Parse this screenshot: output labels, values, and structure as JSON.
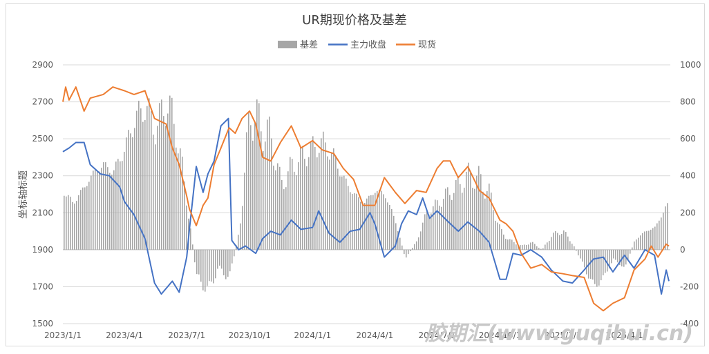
{
  "chart_data": {
    "type": "bar+line",
    "title": "UR期现价格及基差",
    "ylabel": "坐标轴标题",
    "legend_position": "top",
    "grid": true,
    "ylim_left": [
      1500,
      2900
    ],
    "ylim_right": [
      -400,
      1000
    ],
    "y_ticks_left": [
      "2900",
      "2700",
      "2500",
      "2300",
      "2100",
      "1900",
      "1700",
      "1500"
    ],
    "y_ticks_right": [
      "1000",
      "800",
      "600",
      "400",
      "200",
      "0",
      "-200",
      "-400"
    ],
    "x_ticks": [
      "2023/1/1",
      "2023/4/1",
      "2023/7/1",
      "2023/10/1",
      "2024/1/1",
      "2024/4/1",
      "2024/7/1",
      "2024/10/1",
      "2025/1/1",
      "2025/4/1"
    ],
    "series": [
      {
        "name": "基差",
        "axis": "right",
        "type": "bar",
        "color": "#a6a6a6",
        "points": [
          [
            "2023/1/1",
            320
          ],
          [
            "2023/1/15",
            250
          ],
          [
            "2023/2/1",
            340
          ],
          [
            "2023/2/15",
            420
          ],
          [
            "2023/3/1",
            460
          ],
          [
            "2023/3/15",
            420
          ],
          [
            "2023/4/1",
            550
          ],
          [
            "2023/4/15",
            700
          ],
          [
            "2023/5/1",
            780
          ],
          [
            "2023/5/15",
            650
          ],
          [
            "2023/6/1",
            800
          ],
          [
            "2023/6/15",
            650
          ],
          [
            "2023/7/1",
            250
          ],
          [
            "2023/7/15",
            -150
          ],
          [
            "2023/8/1",
            -220
          ],
          [
            "2023/8/15",
            -100
          ],
          [
            "2023/9/1",
            -150
          ],
          [
            "2023/9/15",
            100
          ],
          [
            "2023/10/1",
            750
          ],
          [
            "2023/10/15",
            680
          ],
          [
            "2023/11/1",
            600
          ],
          [
            "2023/11/15",
            350
          ],
          [
            "2023/12/1",
            450
          ],
          [
            "2023/12/15",
            500
          ],
          [
            "2024/1/1",
            550
          ],
          [
            "2024/1/15",
            580
          ],
          [
            "2024/2/1",
            500
          ],
          [
            "2024/2/15",
            380
          ],
          [
            "2024/3/1",
            300
          ],
          [
            "2024/3/15",
            250
          ],
          [
            "2024/4/1",
            320
          ],
          [
            "2024/4/15",
            300
          ],
          [
            "2024/5/1",
            150
          ],
          [
            "2024/5/15",
            -50
          ],
          [
            "2024/6/1",
            50
          ],
          [
            "2024/6/15",
            200
          ],
          [
            "2024/7/1",
            250
          ],
          [
            "2024/7/15",
            300
          ],
          [
            "2024/8/1",
            350
          ],
          [
            "2024/8/15",
            400
          ],
          [
            "2024/9/1",
            380
          ],
          [
            "2024/9/15",
            300
          ],
          [
            "2024/10/1",
            100
          ],
          [
            "2024/10/15",
            50
          ],
          [
            "2024/11/1",
            20
          ],
          [
            "2024/11/15",
            40
          ],
          [
            "2024/12/1",
            0
          ],
          [
            "2024/12/15",
            80
          ],
          [
            "2025/1/1",
            100
          ],
          [
            "2025/1/15",
            30
          ],
          [
            "2025/2/1",
            -100
          ],
          [
            "2025/2/15",
            -200
          ],
          [
            "2025/3/1",
            -150
          ],
          [
            "2025/3/15",
            -50
          ],
          [
            "2025/4/1",
            -100
          ],
          [
            "2025/4/15",
            50
          ],
          [
            "2025/5/1",
            100
          ],
          [
            "2025/5/15",
            120
          ],
          [
            "2025/6/1",
            240
          ]
        ]
      },
      {
        "name": "主力收盘",
        "axis": "left",
        "type": "line",
        "color": "#4472c4",
        "points": [
          [
            "2023/1/1",
            2430
          ],
          [
            "2023/1/10",
            2450
          ],
          [
            "2023/1/20",
            2480
          ],
          [
            "2023/2/1",
            2480
          ],
          [
            "2023/2/10",
            2360
          ],
          [
            "2023/2/25",
            2310
          ],
          [
            "2023/3/10",
            2300
          ],
          [
            "2023/3/25",
            2240
          ],
          [
            "2023/4/1",
            2160
          ],
          [
            "2023/4/15",
            2090
          ],
          [
            "2023/5/1",
            1960
          ],
          [
            "2023/5/15",
            1720
          ],
          [
            "2023/5/25",
            1660
          ],
          [
            "2023/6/10",
            1730
          ],
          [
            "2023/6/20",
            1670
          ],
          [
            "2023/7/1",
            1860
          ],
          [
            "2023/7/5",
            2010
          ],
          [
            "2023/7/15",
            2350
          ],
          [
            "2023/7/25",
            2210
          ],
          [
            "2023/8/1",
            2310
          ],
          [
            "2023/8/10",
            2380
          ],
          [
            "2023/8/20",
            2570
          ],
          [
            "2023/8/31",
            2610
          ],
          [
            "2023/9/5",
            1950
          ],
          [
            "2023/9/15",
            1900
          ],
          [
            "2023/9/25",
            1920
          ],
          [
            "2023/10/10",
            1880
          ],
          [
            "2023/10/20",
            1960
          ],
          [
            "2023/11/1",
            2000
          ],
          [
            "2023/11/15",
            1980
          ],
          [
            "2023/12/1",
            2060
          ],
          [
            "2023/12/15",
            2010
          ],
          [
            "2024/1/1",
            2020
          ],
          [
            "2024/1/10",
            2110
          ],
          [
            "2024/1/25",
            1990
          ],
          [
            "2024/2/10",
            1940
          ],
          [
            "2024/2/25",
            2000
          ],
          [
            "2024/3/10",
            2010
          ],
          [
            "2024/3/25",
            2100
          ],
          [
            "2024/4/1",
            2040
          ],
          [
            "2024/4/15",
            1860
          ],
          [
            "2024/5/1",
            1920
          ],
          [
            "2024/5/10",
            2040
          ],
          [
            "2024/5/20",
            2110
          ],
          [
            "2024/6/1",
            2090
          ],
          [
            "2024/6/10",
            2180
          ],
          [
            "2024/6/20",
            2070
          ],
          [
            "2024/7/1",
            2110
          ],
          [
            "2024/7/15",
            2060
          ],
          [
            "2024/8/1",
            2000
          ],
          [
            "2024/8/15",
            2050
          ],
          [
            "2024/9/1",
            2000
          ],
          [
            "2024/9/15",
            1940
          ],
          [
            "2024/10/1",
            1740
          ],
          [
            "2024/10/10",
            1740
          ],
          [
            "2024/10/20",
            1880
          ],
          [
            "2024/11/1",
            1870
          ],
          [
            "2024/11/15",
            1900
          ],
          [
            "2024/12/1",
            1860
          ],
          [
            "2024/12/15",
            1790
          ],
          [
            "2025/1/1",
            1730
          ],
          [
            "2025/1/15",
            1720
          ],
          [
            "2025/2/1",
            1790
          ],
          [
            "2025/2/15",
            1850
          ],
          [
            "2025/3/1",
            1860
          ],
          [
            "2025/3/15",
            1780
          ],
          [
            "2025/4/1",
            1870
          ],
          [
            "2025/4/15",
            1800
          ],
          [
            "2025/5/1",
            1900
          ],
          [
            "2025/5/15",
            1870
          ],
          [
            "2025/5/25",
            1660
          ],
          [
            "2025/6/1",
            1790
          ],
          [
            "2025/6/5",
            1730
          ]
        ]
      },
      {
        "name": "现货",
        "axis": "left",
        "type": "line",
        "color": "#ed7d31",
        "points": [
          [
            "2023/1/1",
            2700
          ],
          [
            "2023/1/5",
            2780
          ],
          [
            "2023/1/10",
            2710
          ],
          [
            "2023/1/20",
            2780
          ],
          [
            "2023/2/1",
            2650
          ],
          [
            "2023/2/10",
            2720
          ],
          [
            "2023/3/1",
            2740
          ],
          [
            "2023/3/15",
            2780
          ],
          [
            "2023/4/1",
            2760
          ],
          [
            "2023/4/15",
            2740
          ],
          [
            "2023/5/1",
            2760
          ],
          [
            "2023/5/15",
            2610
          ],
          [
            "2023/6/1",
            2580
          ],
          [
            "2023/6/10",
            2450
          ],
          [
            "2023/6/20",
            2360
          ],
          [
            "2023/7/1",
            2190
          ],
          [
            "2023/7/5",
            2120
          ],
          [
            "2023/7/15",
            2030
          ],
          [
            "2023/7/25",
            2140
          ],
          [
            "2023/8/1",
            2180
          ],
          [
            "2023/8/10",
            2360
          ],
          [
            "2023/8/20",
            2450
          ],
          [
            "2023/9/1",
            2560
          ],
          [
            "2023/9/10",
            2530
          ],
          [
            "2023/9/20",
            2610
          ],
          [
            "2023/10/1",
            2650
          ],
          [
            "2023/10/10",
            2580
          ],
          [
            "2023/10/20",
            2400
          ],
          [
            "2023/11/1",
            2380
          ],
          [
            "2023/11/15",
            2480
          ],
          [
            "2023/12/1",
            2570
          ],
          [
            "2023/12/15",
            2450
          ],
          [
            "2024/1/1",
            2490
          ],
          [
            "2024/1/15",
            2440
          ],
          [
            "2024/2/1",
            2420
          ],
          [
            "2024/2/15",
            2340
          ],
          [
            "2024/3/1",
            2280
          ],
          [
            "2024/3/15",
            2140
          ],
          [
            "2024/4/1",
            2140
          ],
          [
            "2024/4/15",
            2290
          ],
          [
            "2024/5/1",
            2210
          ],
          [
            "2024/5/15",
            2150
          ],
          [
            "2024/6/1",
            2220
          ],
          [
            "2024/6/15",
            2210
          ],
          [
            "2024/7/1",
            2340
          ],
          [
            "2024/7/10",
            2380
          ],
          [
            "2024/7/20",
            2380
          ],
          [
            "2024/8/1",
            2290
          ],
          [
            "2024/8/15",
            2350
          ],
          [
            "2024/9/1",
            2220
          ],
          [
            "2024/9/15",
            2180
          ],
          [
            "2024/10/1",
            2060
          ],
          [
            "2024/10/10",
            2040
          ],
          [
            "2024/10/20",
            2000
          ],
          [
            "2024/11/1",
            1880
          ],
          [
            "2024/11/15",
            1800
          ],
          [
            "2024/12/1",
            1820
          ],
          [
            "2024/12/15",
            1780
          ],
          [
            "2025/1/1",
            1770
          ],
          [
            "2025/1/15",
            1760
          ],
          [
            "2025/2/1",
            1750
          ],
          [
            "2025/2/15",
            1610
          ],
          [
            "2025/3/1",
            1570
          ],
          [
            "2025/3/15",
            1610
          ],
          [
            "2025/4/1",
            1640
          ],
          [
            "2025/4/15",
            1790
          ],
          [
            "2025/5/1",
            1850
          ],
          [
            "2025/5/10",
            1920
          ],
          [
            "2025/5/20",
            1860
          ],
          [
            "2025/6/1",
            1930
          ],
          [
            "2025/6/5",
            1920
          ]
        ]
      }
    ]
  }
}
